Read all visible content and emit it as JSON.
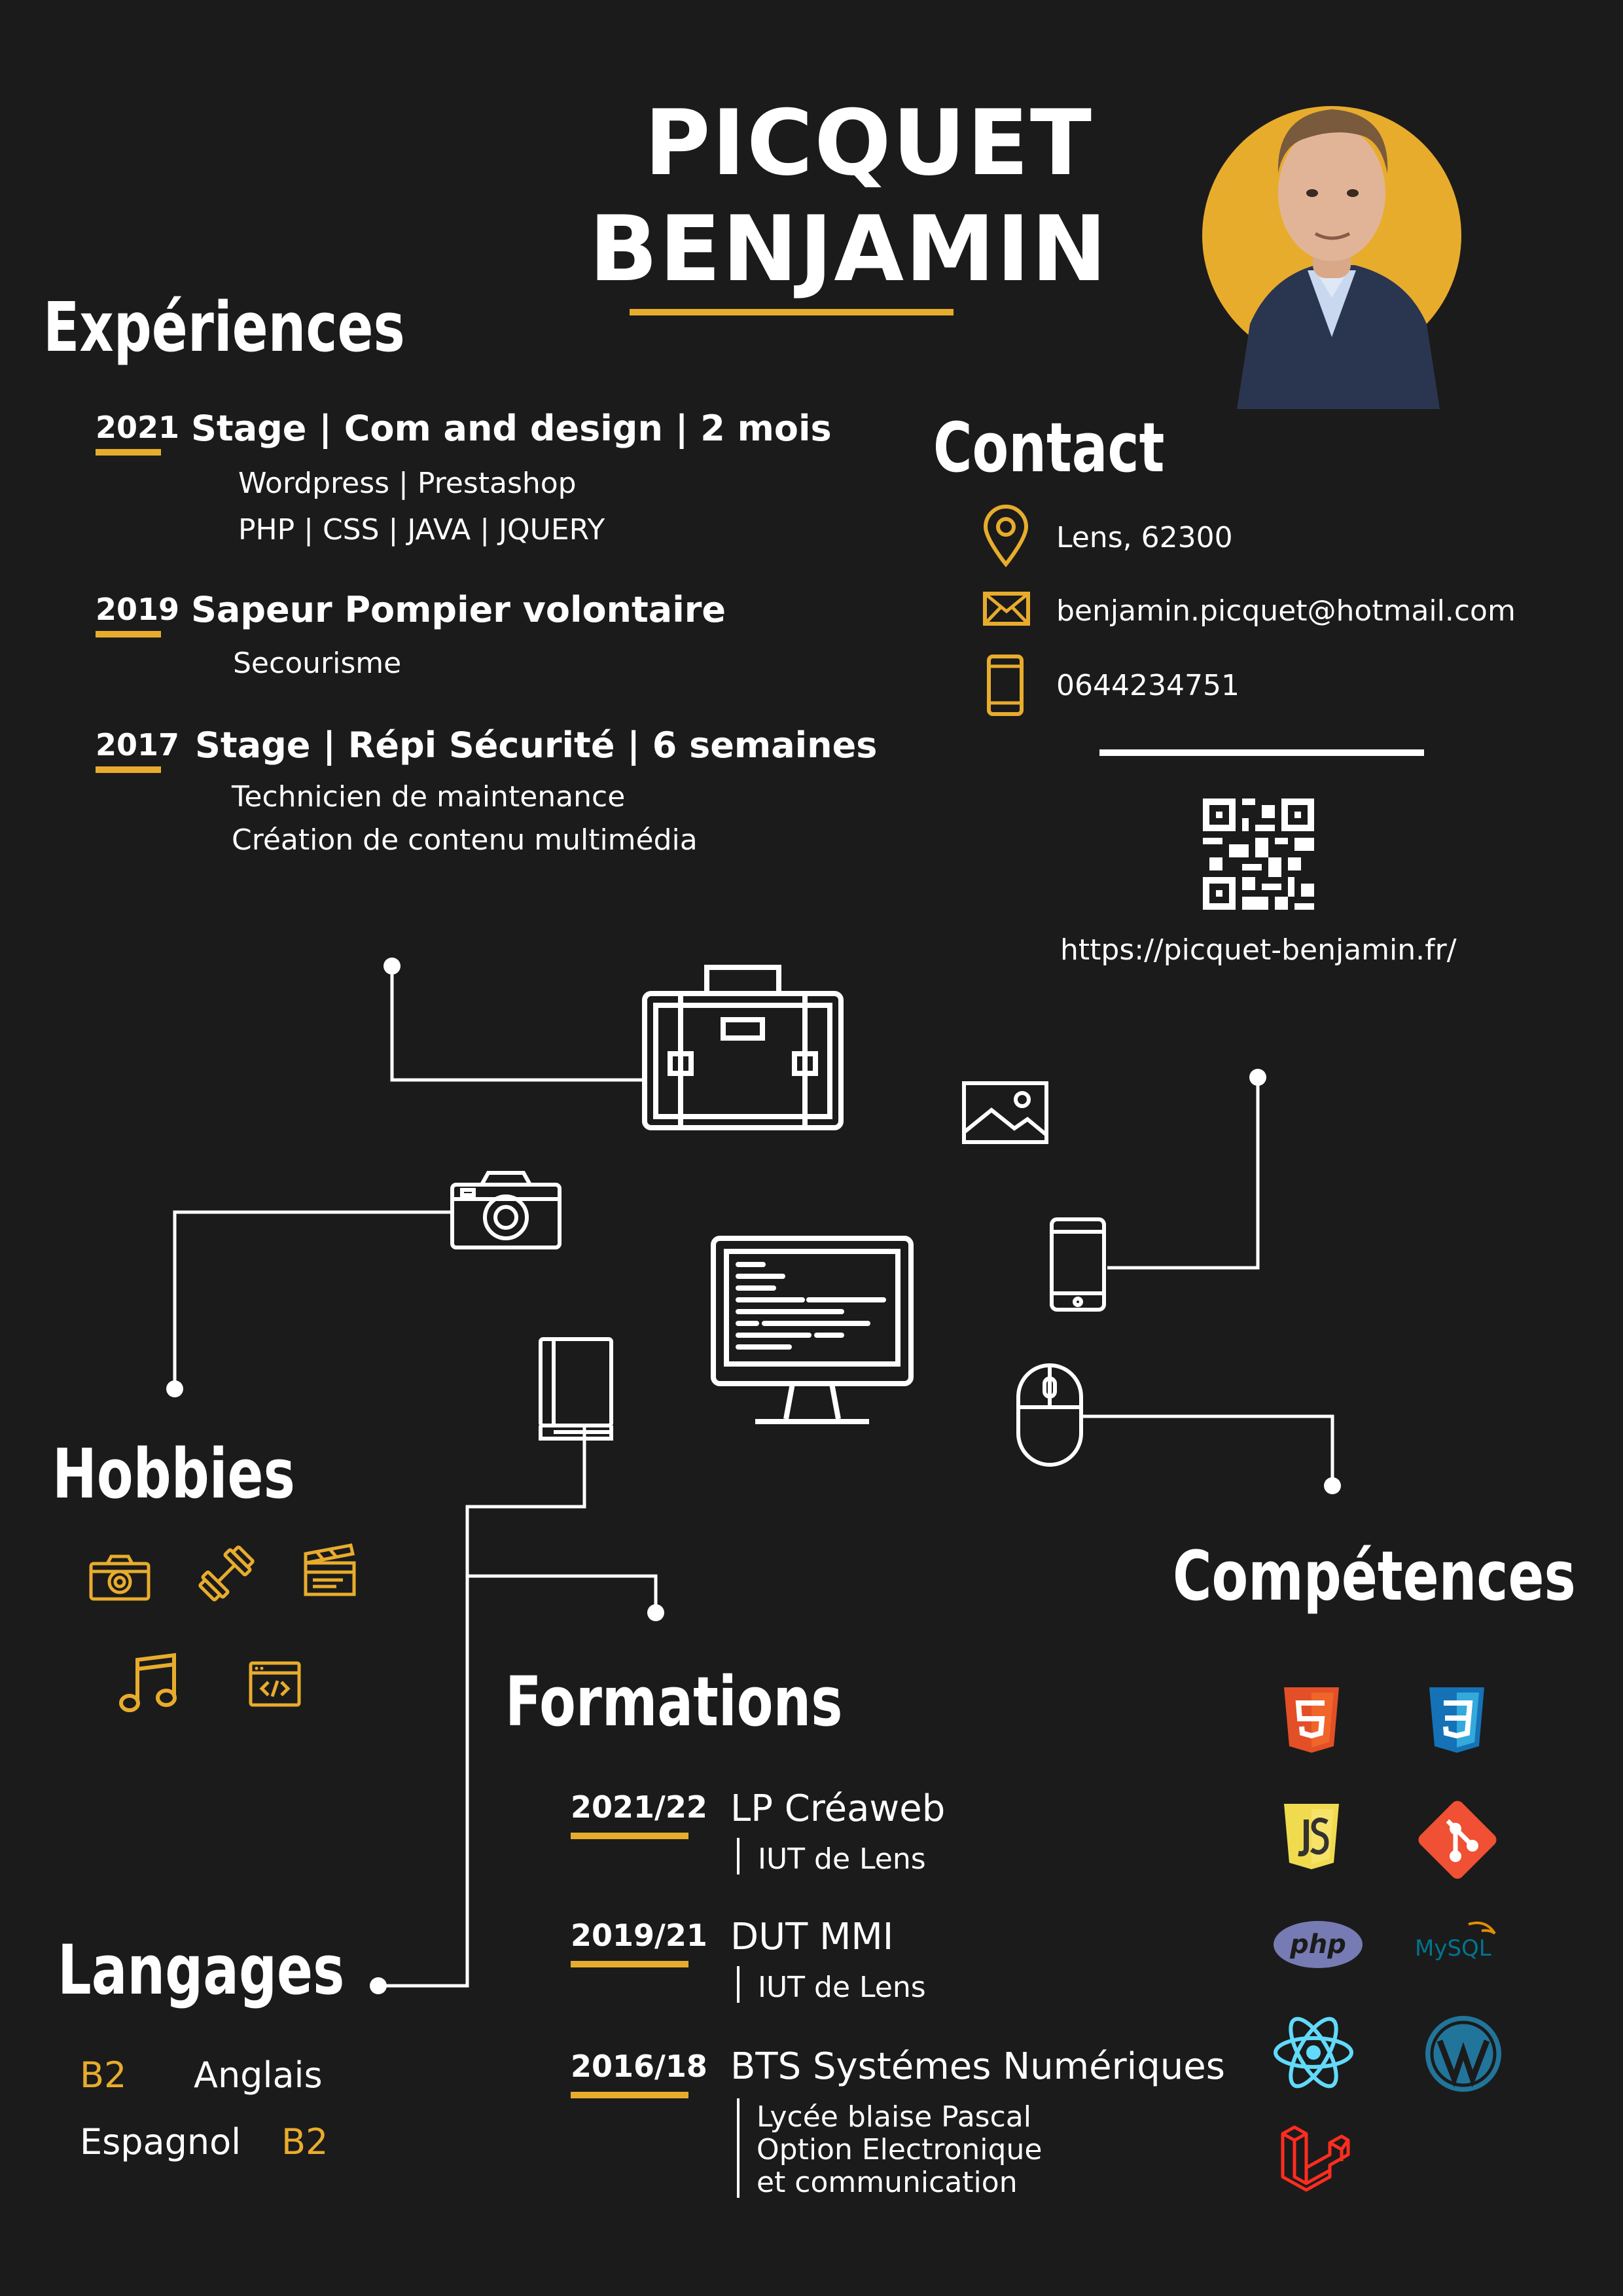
{
  "header": {
    "last_name": "PICQUET",
    "first_name": "BENJAMIN"
  },
  "sections": {
    "experiences": "Expériences",
    "contact": "Contact",
    "hobbies": "Hobbies",
    "competences": "Compétences",
    "formations": "Formations",
    "langages": "Langages"
  },
  "experiences": [
    {
      "year": "2021",
      "title": "Stage | Com and design | 2 mois",
      "details": [
        "Wordpress | Prestashop",
        "PHP | CSS | JAVA | JQUERY"
      ]
    },
    {
      "year": "2019",
      "title": "Sapeur Pompier volontaire",
      "details": [
        "Secourisme"
      ]
    },
    {
      "year": "2017",
      "title": "Stage | Répi Sécurité | 6 semaines",
      "details": [
        "Technicien de maintenance",
        "Création de contenu multimédia"
      ]
    }
  ],
  "contact": {
    "location": "Lens, 62300",
    "email": "benjamin.picquet@hotmail.com",
    "phone": "0644234751",
    "website": "https://picquet-benjamin.fr/"
  },
  "formations": [
    {
      "years": "2021/22",
      "title": "LP Créaweb",
      "lines": [
        "IUT de Lens"
      ]
    },
    {
      "years": "2019/21",
      "title": "DUT MMI",
      "lines": [
        "IUT de Lens"
      ]
    },
    {
      "years": "2016/18",
      "title": "BTS Systémes Numériques",
      "lines": [
        "Lycée blaise Pascal",
        "Option Electronique",
        "et communication"
      ]
    }
  ],
  "languages": [
    {
      "level": "B2",
      "name": "Anglais"
    },
    {
      "name": "Espagnol",
      "level": "B2"
    }
  ],
  "skill_logos": {
    "php": "php",
    "mysql": "MySQL"
  },
  "icons": {
    "contact": [
      "location-pin-icon",
      "envelope-icon",
      "smartphone-icon"
    ],
    "hobbies": [
      "camera-icon",
      "dumbbell-icon",
      "clapperboard-icon",
      "music-note-icon",
      "code-window-icon"
    ],
    "skills": [
      "html5-icon",
      "css3-icon",
      "javascript-icon",
      "git-icon",
      "php-icon",
      "mysql-icon",
      "react-icon",
      "wordpress-icon",
      "laravel-icon"
    ],
    "illustration": [
      "briefcase-icon",
      "image-icon",
      "camera-icon",
      "smartphone-icon",
      "monitor-code-icon",
      "book-icon",
      "mouse-icon"
    ]
  },
  "colors": {
    "background": "#1b1b1b",
    "accent": "#e8ac2d",
    "text": "#ffffff"
  }
}
